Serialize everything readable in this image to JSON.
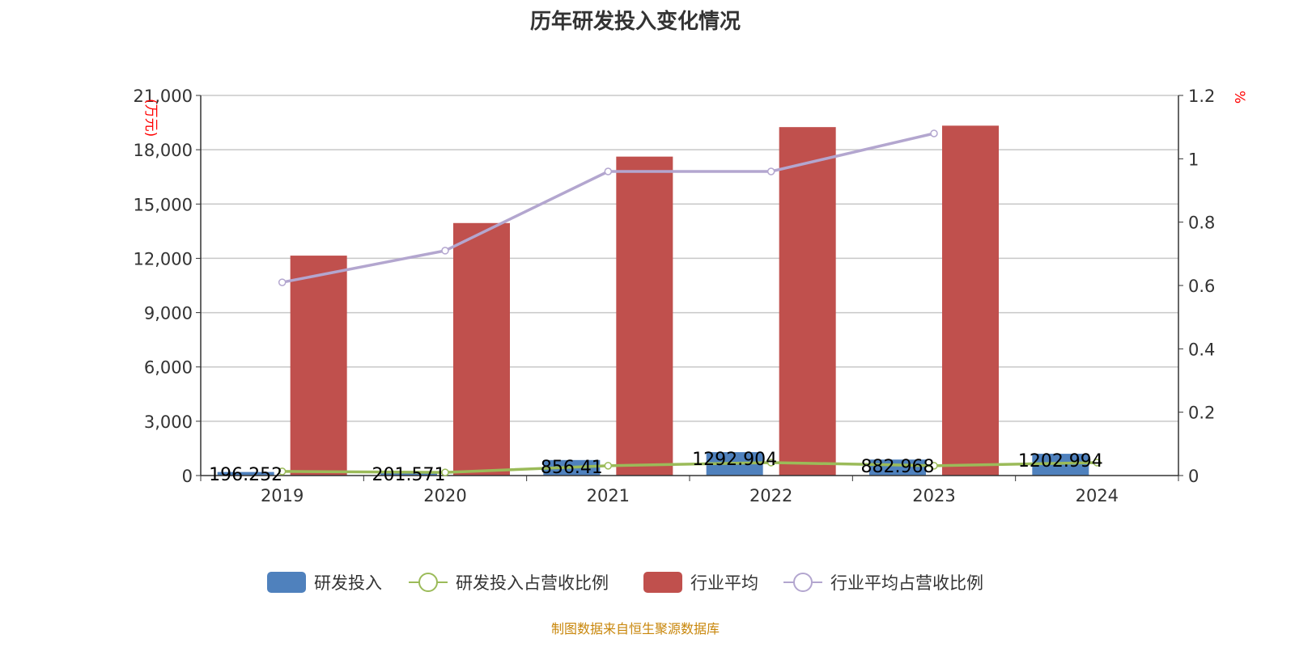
{
  "chart_data": {
    "type": "bar",
    "title": "历年研发投入变化情况",
    "source": "制图数据来自恒生聚源数据库",
    "categories": [
      "2019",
      "2020",
      "2021",
      "2022",
      "2023",
      "2024"
    ],
    "ylabel_left": "(万元)",
    "ylabel_right": "%",
    "ylim_left": [
      0,
      21000
    ],
    "ylim_right": [
      0,
      1.2
    ],
    "yticks_left": [
      "0",
      "3,000",
      "6,000",
      "9,000",
      "12,000",
      "15,000",
      "18,000",
      "21,000"
    ],
    "yticks_right": [
      "0",
      "0.2",
      "0.4",
      "0.6",
      "0.8",
      "1",
      "1.2"
    ],
    "grid": true,
    "legend_position": "bottom",
    "series": [
      {
        "name": "研发投入",
        "type": "bar",
        "axis": "left",
        "color": "#4f81bd",
        "values": [
          196.252,
          201.571,
          856.41,
          1292.904,
          882.968,
          1202.994
        ],
        "labels": [
          "196.252",
          "201.571",
          "856.41",
          "1292.904",
          "882.968",
          "1202.994"
        ]
      },
      {
        "name": "研发投入占营收比例",
        "type": "line",
        "axis": "right",
        "color": "#9bbb59",
        "values": [
          0.013,
          0.01,
          0.031,
          0.041,
          0.031,
          0.041
        ]
      },
      {
        "name": "行业平均",
        "type": "bar",
        "axis": "left",
        "color": "#c0504d",
        "values": [
          12150,
          13950,
          17620,
          19250,
          19330,
          null
        ]
      },
      {
        "name": "行业平均占营收比例",
        "type": "line",
        "axis": "right",
        "color": "#b3a6cf",
        "values": [
          0.61,
          0.71,
          0.96,
          0.96,
          1.08,
          null
        ]
      }
    ]
  }
}
